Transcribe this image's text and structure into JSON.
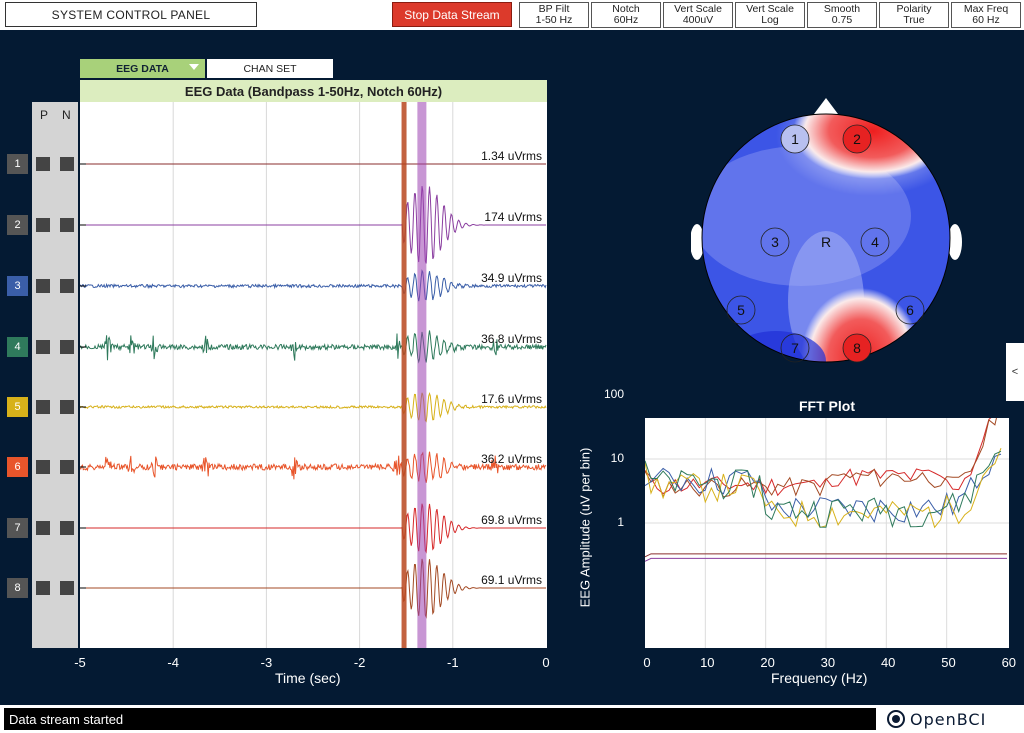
{
  "header": {
    "system_control_panel": "SYSTEM CONTROL PANEL",
    "stop_data_stream": "Stop Data Stream",
    "settings": [
      {
        "label": "BP Filt",
        "value": "1-50 Hz"
      },
      {
        "label": "Notch",
        "value": "60Hz"
      },
      {
        "label": "Vert Scale",
        "value": "400uV"
      },
      {
        "label": "Vert Scale",
        "value": "Log"
      },
      {
        "label": "Smooth",
        "value": "0.75"
      },
      {
        "label": "Polarity",
        "value": "True"
      },
      {
        "label": "Max Freq",
        "value": "60 Hz"
      }
    ]
  },
  "eeg_panel": {
    "tab_eeg": "EEG DATA",
    "tab_chan": "CHAN SET",
    "title": "EEG Data (Bandpass 1-50Hz, Notch 60Hz)",
    "p_label": "P",
    "n_label": "N",
    "channels": [
      {
        "num": "1",
        "rms": "1.34 uVrms",
        "color": "#555555",
        "line_color": "#8a2e2e"
      },
      {
        "num": "2",
        "rms": "174 uVrms",
        "color": "#555555",
        "line_color": "#8b3fa0"
      },
      {
        "num": "3",
        "rms": "34.9 uVrms",
        "color": "#3a5ea8",
        "line_color": "#3a5ea8"
      },
      {
        "num": "4",
        "rms": "36.8 uVrms",
        "color": "#2f7a5c",
        "line_color": "#2f7a5c"
      },
      {
        "num": "5",
        "rms": "17.6 uVrms",
        "color": "#d7b11a",
        "line_color": "#d7b11a"
      },
      {
        "num": "6",
        "rms": "36.2 uVrms",
        "color": "#e8552b",
        "line_color": "#e8552b"
      },
      {
        "num": "7",
        "rms": "69.8 uVrms",
        "color": "#555555",
        "line_color": "#d62a2a"
      },
      {
        "num": "8",
        "rms": "69.1 uVrms",
        "color": "#555555",
        "line_color": "#a34a24"
      }
    ],
    "x_ticks": [
      "-5",
      "-4",
      "-3",
      "-2",
      "-1",
      "0"
    ],
    "x_label": "Time (sec)"
  },
  "head_plot": {
    "electrodes": [
      "1",
      "2",
      "3",
      "4",
      "5",
      "6",
      "7",
      "8"
    ],
    "reference": "R"
  },
  "fft": {
    "title": "FFT Plot",
    "y_label": "EEG Amplitude (uV per bin)",
    "y_ticks": [
      "100",
      "10",
      "1"
    ],
    "x_ticks": [
      "0",
      "10",
      "20",
      "30",
      "40",
      "50",
      "60"
    ],
    "x_label": "Frequency (Hz)"
  },
  "side_tab": "<",
  "status": {
    "message": "Data stream started"
  },
  "logo": {
    "text": "OpenBCI"
  }
}
